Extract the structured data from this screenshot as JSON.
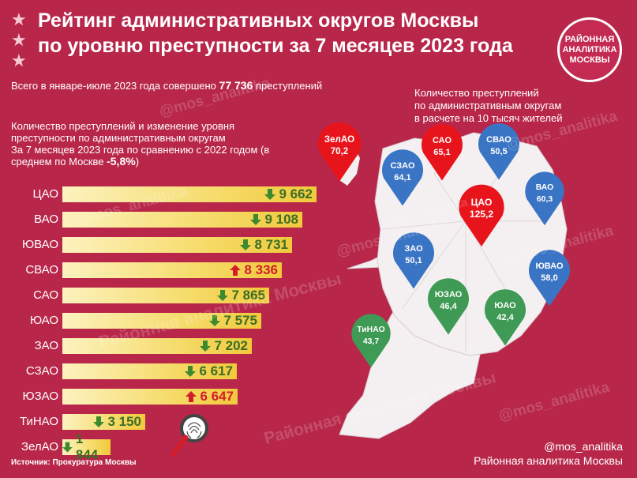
{
  "title_line1": "Рейтинг административных округов Москвы",
  "title_line2": "по уровню преступности за 7 месяцев 2023 года",
  "badge": {
    "line1": "РАЙОННАЯ",
    "line2": "АНАЛИТИКА",
    "line3": "МОСКВЫ"
  },
  "total": {
    "prefix": "Всего в январе-июле 2023 года совершено",
    "value": "77 736",
    "suffix": "преступлений"
  },
  "left_header": {
    "line1": "Количество преступлений и изменение уровня",
    "line2": "преступности по административным округам",
    "line3": "За 7 месяцев 2023 года по сравнению с 2022 годом (в",
    "line4_prefix": "среднем по Москве",
    "line4_value": "-5,8%",
    "line4_suffix": ")"
  },
  "right_header": {
    "line1": "Количество преступлений",
    "line2": "по административным округам",
    "line3": "в расчете на 10 тысяч жителей"
  },
  "source": "Источник: Прокуратура Москвы",
  "footer": {
    "handle": "@mos_analitika",
    "name": "Районная аналитика Москвы"
  },
  "watermarks": [
    "@mos_analitika",
    "@mos_analitika",
    "@mos_analitika",
    "@mos_analitika",
    "@mos_analitika",
    "@mos_analitika",
    "@mos_analitika",
    "Районная аналитика Москвы",
    "Районная аналитика Москвы"
  ],
  "colors": {
    "background": "#b8274a",
    "up_arrow": "#d21e2c",
    "down_arrow": "#3d8a2e",
    "pin_red": "#e8141c",
    "pin_blue": "#3a74c4",
    "pin_green": "#3f9a55",
    "map_fill": "#f4f0f1"
  },
  "chart_data": [
    {
      "type": "bar",
      "orientation": "horizontal",
      "categories": [
        "ЦАО",
        "ВАО",
        "ЮВАО",
        "СВАО",
        "САО",
        "ЮАО",
        "ЗАО",
        "СЗАО",
        "ЮЗАО",
        "ТиНАО",
        "ЗелАО"
      ],
      "values": [
        9662,
        9108,
        8731,
        8336,
        7865,
        7575,
        7202,
        6617,
        6647,
        3150,
        1844
      ],
      "labels": [
        "9 662",
        "9 108",
        "8 731",
        "8 336",
        "7 865",
        "7 575",
        "7 202",
        "6 617",
        "6 647",
        "3 150",
        "1 844"
      ],
      "change_direction": [
        "down",
        "down",
        "down",
        "up",
        "down",
        "down",
        "down",
        "down",
        "up",
        "down",
        "down"
      ],
      "xlim": [
        0,
        9662
      ]
    },
    {
      "type": "map",
      "districts": [
        {
          "name": "ЗелАО",
          "value": "70,2",
          "color": "red"
        },
        {
          "name": "САО",
          "value": "65,1",
          "color": "red"
        },
        {
          "name": "СВАО",
          "value": "50,5",
          "color": "blue"
        },
        {
          "name": "СЗАО",
          "value": "64,1",
          "color": "blue"
        },
        {
          "name": "ВАО",
          "value": "60,3",
          "color": "blue"
        },
        {
          "name": "ЦАО",
          "value": "125,2",
          "color": "red"
        },
        {
          "name": "ЗАО",
          "value": "50,1",
          "color": "blue"
        },
        {
          "name": "ЮВАО",
          "value": "58,0",
          "color": "blue"
        },
        {
          "name": "ЮЗАО",
          "value": "46,4",
          "color": "green"
        },
        {
          "name": "ЮАО",
          "value": "42,4",
          "color": "green"
        },
        {
          "name": "ТиНАО",
          "value": "43,7",
          "color": "green"
        }
      ]
    }
  ]
}
